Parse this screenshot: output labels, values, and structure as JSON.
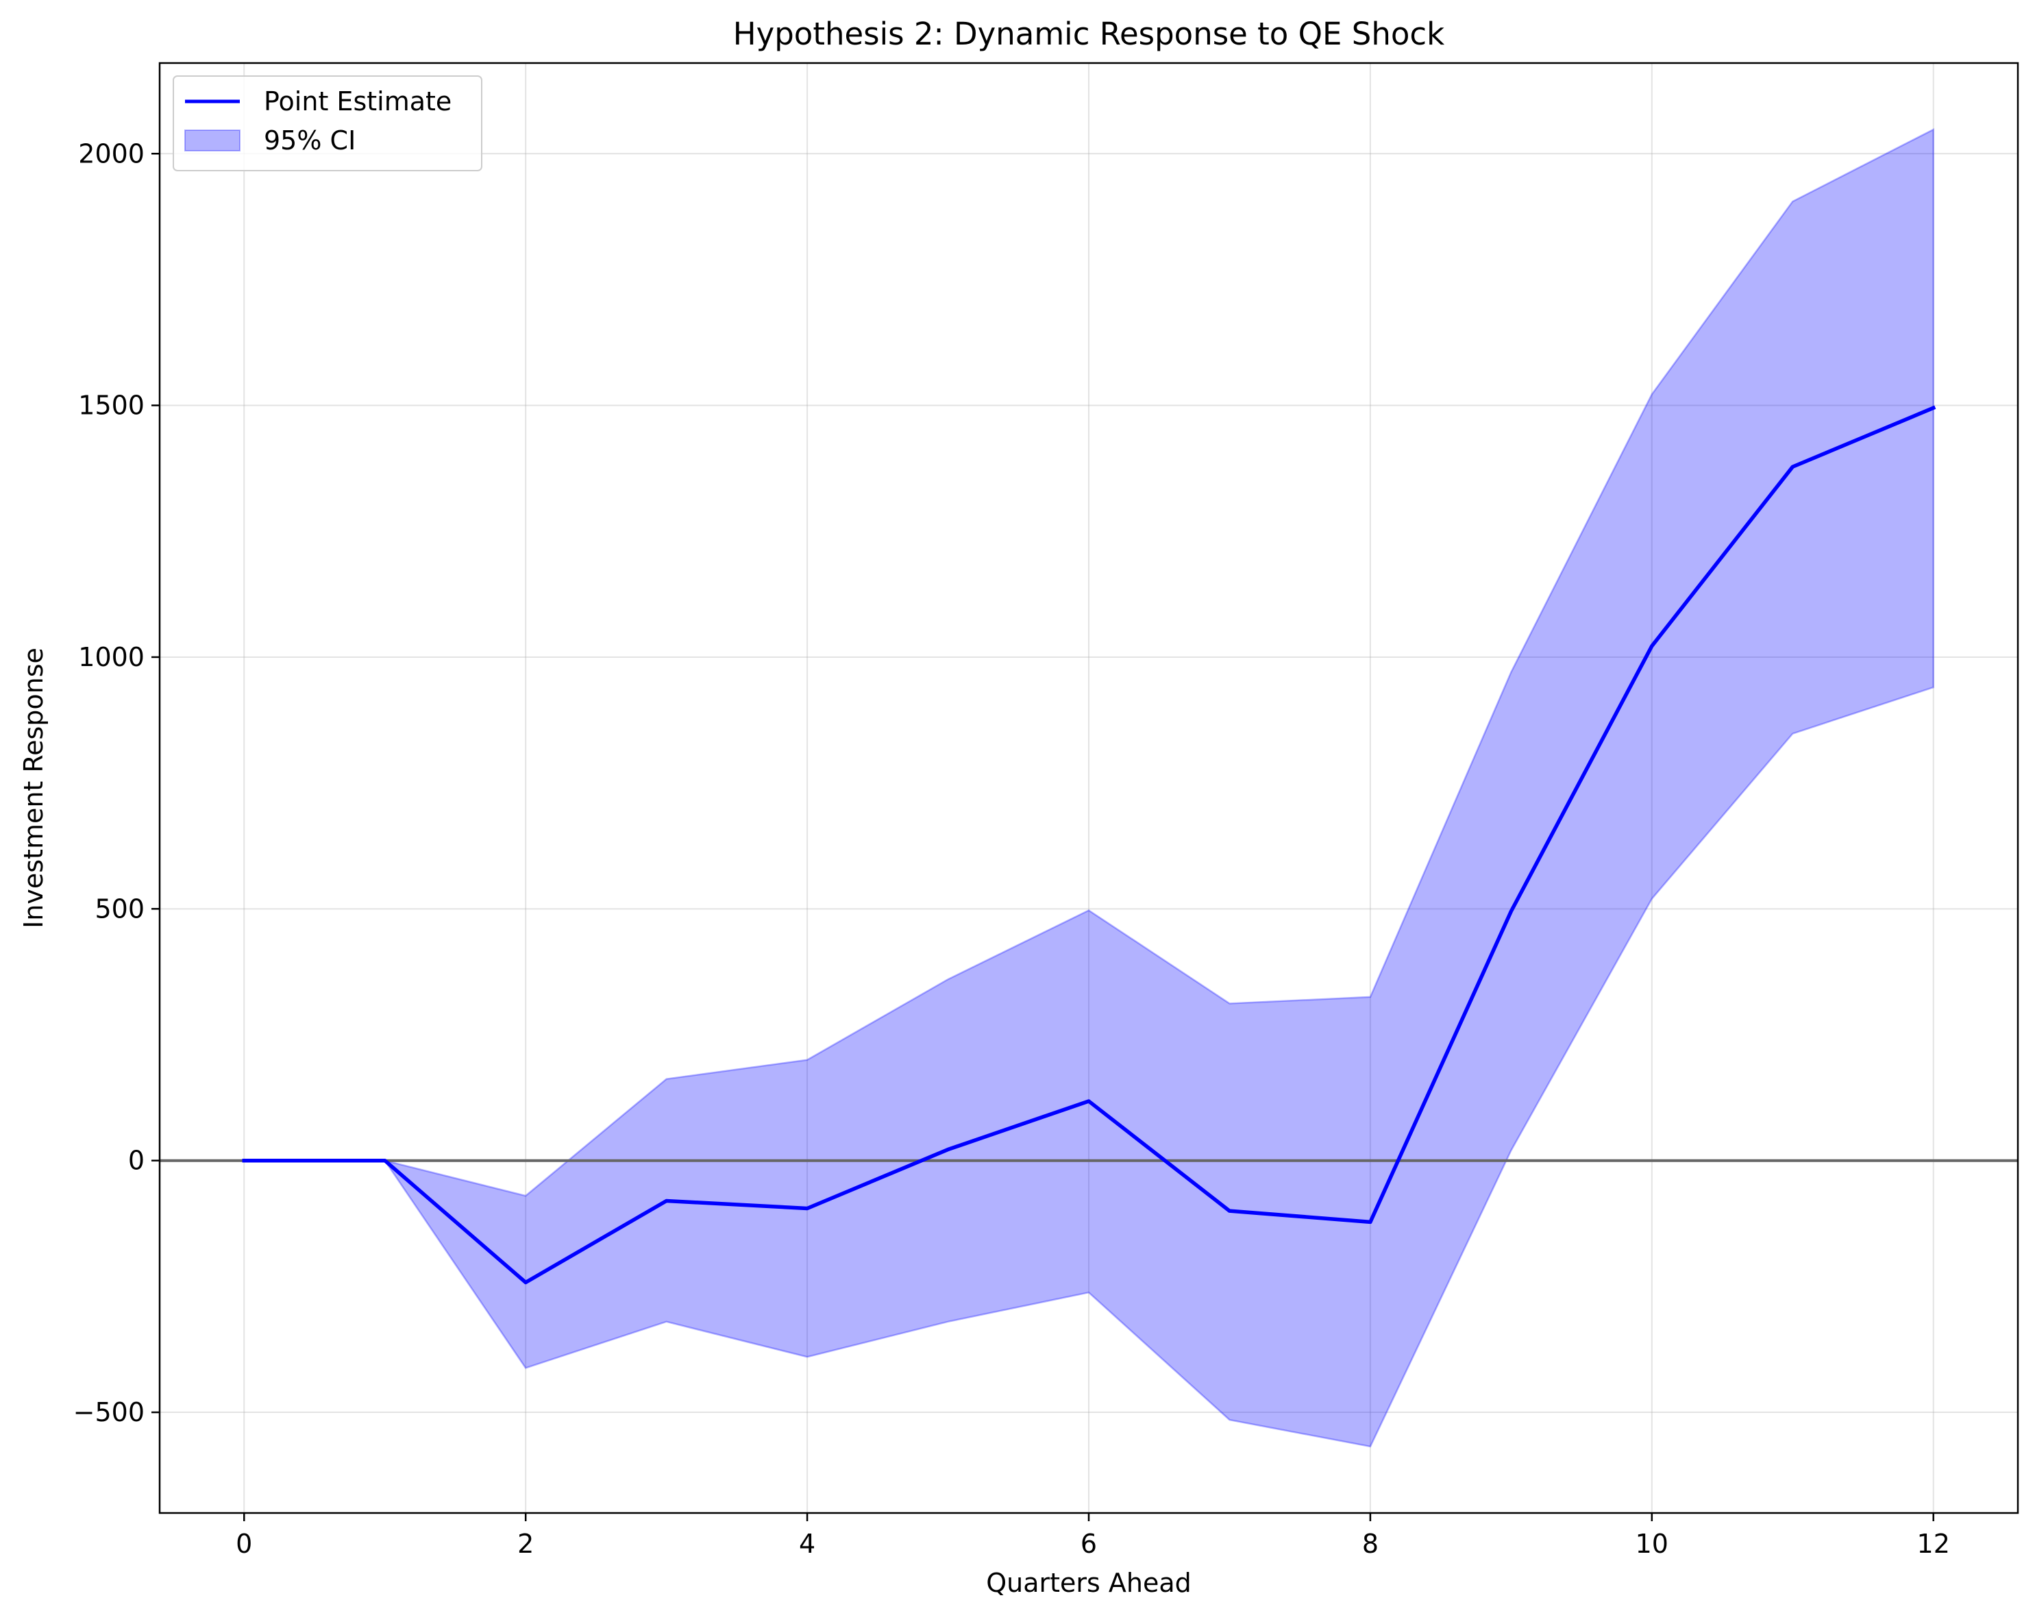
{
  "chart_data": {
    "type": "line",
    "title": "Hypothesis 2: Dynamic Response to QE Shock",
    "xlabel": "Quarters Ahead",
    "ylabel": "Investment Response",
    "xlim": [
      -0.6,
      12.6
    ],
    "ylim": [
      -700,
      2180
    ],
    "xticks": [
      0,
      2,
      4,
      6,
      8,
      10,
      12
    ],
    "yticks": [
      -500,
      0,
      500,
      1000,
      1500,
      2000
    ],
    "ytick_labels": [
      "−500",
      "0",
      "500",
      "1000",
      "1500",
      "2000"
    ],
    "grid": true,
    "legend_position": "top-left",
    "reference_line": {
      "y": 0,
      "color": "#666666"
    },
    "x": [
      0,
      1,
      2,
      3,
      4,
      5,
      6,
      7,
      8,
      9,
      10,
      11,
      12
    ],
    "series": [
      {
        "name": "Point Estimate",
        "kind": "line",
        "color": "#0000ff",
        "values": [
          0,
          0,
          -242,
          -80,
          -95,
          22,
          118,
          -100,
          -122,
          495,
          1022,
          1378,
          1495
        ]
      },
      {
        "name": "95% CI",
        "kind": "band",
        "color": "#0000ff",
        "upper": [
          0,
          0,
          -70,
          162,
          200,
          360,
          497,
          312,
          325,
          970,
          1522,
          1905,
          2048
        ],
        "lower": [
          0,
          0,
          -412,
          -320,
          -390,
          -320,
          -262,
          -515,
          -568,
          20,
          520,
          848,
          940
        ]
      }
    ]
  }
}
